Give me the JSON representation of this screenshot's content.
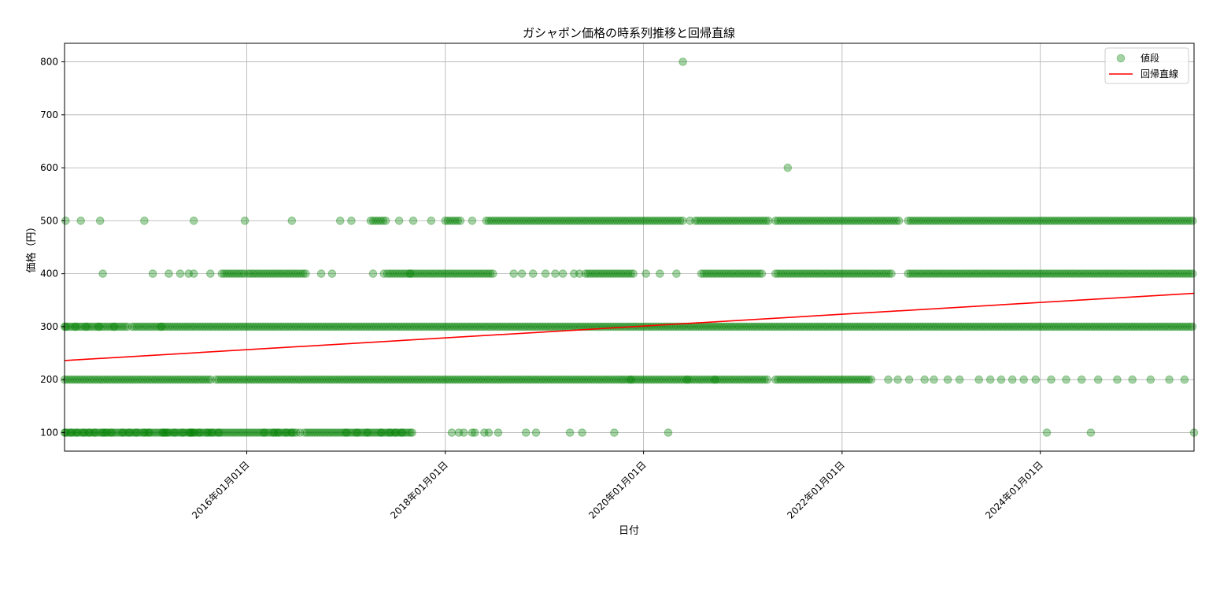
{
  "chart_data": {
    "type": "scatter",
    "title": "ガシャポン価格の時系列推移と回帰直線",
    "xlabel": "日付",
    "ylabel": "価格（円）",
    "x_axis_type": "date",
    "xlim": [
      "2014-03-01",
      "2025-07-20"
    ],
    "ylim": [
      65,
      835
    ],
    "x_ticks": [
      "2016-01-01",
      "2018-01-01",
      "2020-01-01",
      "2022-01-01",
      "2024-01-01"
    ],
    "x_tick_labels": [
      "2016年01月01日",
      "2018年01月01日",
      "2020年01月01日",
      "2022年01月01日",
      "2024年01月01日"
    ],
    "y_ticks": [
      100,
      200,
      300,
      400,
      500,
      600,
      700,
      800
    ],
    "y_tick_labels": [
      "100",
      "200",
      "300",
      "400",
      "500",
      "600",
      "700",
      "800"
    ],
    "grid": true,
    "legend_position": "top-right",
    "series": [
      {
        "name": "値段",
        "kind": "scatter",
        "color": "#008000",
        "opacity": 0.35,
        "levels": [
          {
            "y": 100,
            "ranges": [
              [
                "2014-03-01",
                "2016-07-01"
              ],
              [
                "2016-08-01",
                "2017-09-01"
              ]
            ],
            "points": [
              "2014-03-05",
              "2014-03-25",
              "2014-04-15",
              "2014-05-10",
              "2014-05-30",
              "2014-06-20",
              "2014-07-20",
              "2014-08-01",
              "2014-08-20",
              "2014-10-01",
              "2014-10-25",
              "2014-11-20",
              "2014-12-20",
              "2015-01-05",
              "2015-02-25",
              "2015-03-05",
              "2015-03-15",
              "2015-04-10",
              "2015-05-10",
              "2015-06-05",
              "2015-06-10",
              "2015-06-20",
              "2015-07-10",
              "2015-08-10",
              "2015-08-25",
              "2015-09-20",
              "2016-03-05",
              "2016-04-10",
              "2016-04-25",
              "2016-05-25",
              "2016-06-15",
              "2016-07-01",
              "2016-07-15",
              "2017-01-01",
              "2017-02-10",
              "2017-03-20",
              "2017-05-10",
              "2017-06-10",
              "2017-07-01",
              "2017-07-25",
              "2017-09-01",
              "2018-01-25",
              "2018-02-20",
              "2018-03-10",
              "2018-04-10",
              "2018-04-20",
              "2018-05-25",
              "2018-06-10",
              "2018-07-15",
              "2018-10-25",
              "2018-12-01",
              "2019-04-05",
              "2019-05-20",
              "2019-09-15",
              "2020-04-01",
              "2024-01-25",
              "2024-07-05",
              "2025-07-20"
            ]
          },
          {
            "y": 200,
            "ranges": [
              [
                "2014-03-01",
                "2015-08-25"
              ],
              [
                "2015-09-10",
                "2019-10-20"
              ],
              [
                "2019-10-20",
                "2021-04-01"
              ],
              [
                "2021-05-01",
                "2022-04-25"
              ]
            ],
            "points": [
              "2019-11-15",
              "2020-06-10",
              "2020-09-20",
              "2022-06-20",
              "2022-07-25",
              "2022-09-05",
              "2022-11-01",
              "2022-12-05",
              "2023-01-25",
              "2023-03-10",
              "2023-05-20",
              "2023-07-01",
              "2023-08-10",
              "2023-09-20",
              "2023-11-01",
              "2023-12-15",
              "2024-02-10",
              "2024-04-05",
              "2024-06-01",
              "2024-08-01",
              "2024-10-10",
              "2024-12-05",
              "2025-02-10",
              "2025-04-20",
              "2025-06-15"
            ]
          },
          {
            "y": 300,
            "ranges": [
              [
                "2014-03-01",
                "2014-10-20"
              ],
              [
                "2014-11-05",
                "2025-07-20"
              ]
            ],
            "points": [
              "2014-03-05",
              "2014-04-10",
              "2014-05-20",
              "2014-07-05",
              "2014-08-30",
              "2015-02-20"
            ]
          },
          {
            "y": 400,
            "ranges": [
              [
                "2015-10-01",
                "2016-01-01"
              ],
              [
                "2016-01-05",
                "2016-08-10"
              ],
              [
                "2017-06-01",
                "2018-07-01"
              ],
              [
                "2019-06-01",
                "2019-12-01"
              ],
              [
                "2020-08-01",
                "2021-03-20"
              ],
              [
                "2021-05-01",
                "2022-07-05"
              ],
              [
                "2022-09-01",
                "2025-07-20"
              ]
            ],
            "points": [
              "2014-07-20",
              "2015-01-20",
              "2015-03-20",
              "2015-05-01",
              "2015-06-01",
              "2015-06-20",
              "2015-08-20",
              "2016-10-01",
              "2016-11-10",
              "2017-04-10",
              "2017-05-20",
              "2017-08-25",
              "2018-09-10",
              "2018-10-10",
              "2018-11-20",
              "2019-01-05",
              "2019-02-10",
              "2019-03-10",
              "2019-04-20",
              "2019-05-10",
              "2020-01-10",
              "2020-03-01",
              "2020-05-01"
            ]
          },
          {
            "y": 500,
            "ranges": [
              [
                "2017-04-01",
                "2017-06-01"
              ],
              [
                "2018-01-01",
                "2018-03-01"
              ],
              [
                "2018-06-01",
                "2020-06-01"
              ],
              [
                "2020-07-10",
                "2021-04-05"
              ],
              [
                "2021-05-01",
                "2022-08-05"
              ],
              [
                "2022-09-01",
                "2025-07-20"
              ]
            ],
            "points": [
              "2014-03-05",
              "2014-04-30",
              "2014-07-10",
              "2014-12-20",
              "2015-06-20",
              "2015-12-25",
              "2016-06-15",
              "2016-12-10",
              "2017-01-20",
              "2017-07-15",
              "2017-09-05",
              "2017-11-10",
              "2018-04-10",
              "2020-06-20"
            ]
          },
          {
            "y": 600,
            "ranges": [],
            "points": [
              "2021-06-15"
            ]
          },
          {
            "y": 800,
            "ranges": [],
            "points": [
              "2020-05-25"
            ]
          }
        ]
      },
      {
        "name": "回帰直線",
        "kind": "line",
        "color": "#ff0000",
        "x": [
          "2014-03-01",
          "2025-07-20"
        ],
        "y": [
          236,
          363
        ]
      }
    ]
  }
}
